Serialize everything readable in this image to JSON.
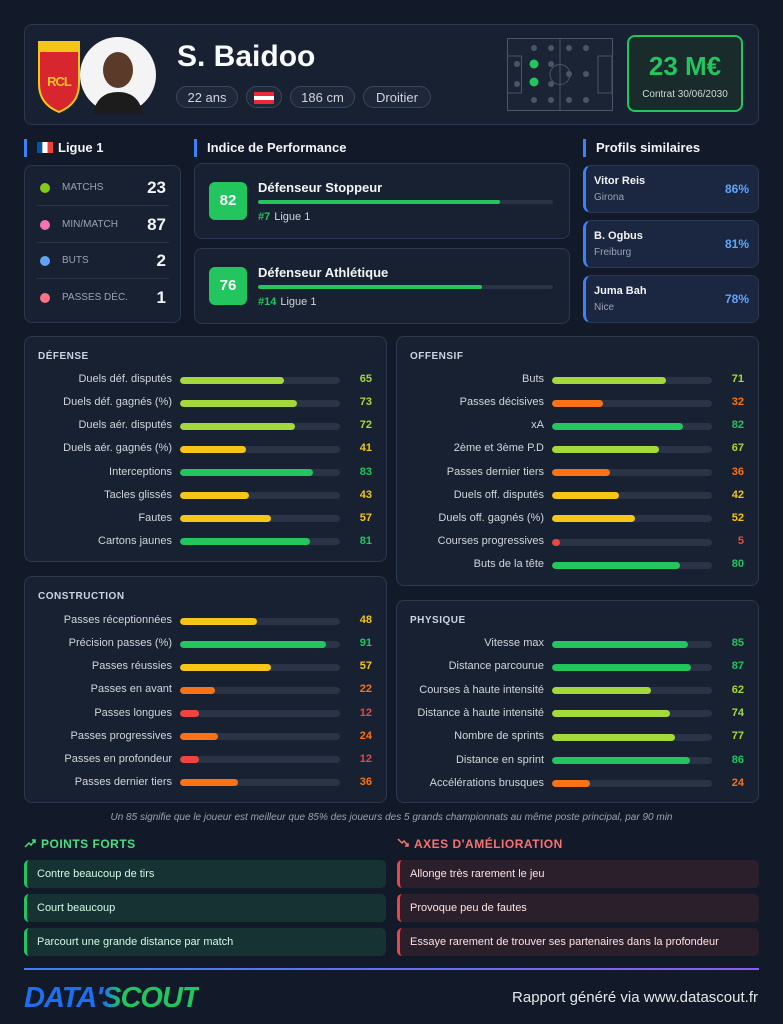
{
  "header": {
    "logo_text": "RCL",
    "name": "S. Baidoo",
    "pills": [
      "22 ans",
      "186 cm",
      "Droitier"
    ],
    "market_value": "23 M€",
    "contract": "Contrat 30/06/2030"
  },
  "league": {
    "title": "Ligue 1",
    "stats": [
      {
        "label": "MATCHS",
        "value": 23
      },
      {
        "label": "MIN/MATCH",
        "value": 87
      },
      {
        "label": "BUTS",
        "value": 2
      },
      {
        "label": "PASSES DÉC.",
        "value": 1
      }
    ]
  },
  "performance": {
    "title": "Indice de Performance",
    "color": "#22c55e",
    "items": [
      {
        "score": 82,
        "role": "Défenseur Stoppeur",
        "rank": "#7",
        "league": "Ligue 1"
      },
      {
        "score": 76,
        "role": "Défenseur Athlétique",
        "rank": "#14",
        "league": "Ligue 1"
      }
    ]
  },
  "similar": {
    "title": "Profils similaires",
    "players": [
      {
        "name": "Vitor Reis",
        "club": "Girona",
        "similarity": "86%"
      },
      {
        "name": "B. Ogbus",
        "club": "Freiburg",
        "similarity": "81%"
      },
      {
        "name": "Juma Bah",
        "club": "Nice",
        "similarity": "78%"
      }
    ]
  },
  "sections": [
    {
      "title": "DÉFENSE",
      "items": [
        {
          "label": "Duels déf. disputés",
          "value": 65,
          "color": "#a3d93a"
        },
        {
          "label": "Duels déf. gagnés (%)",
          "value": 73,
          "color": "#a3d93a"
        },
        {
          "label": "Duels aér. disputés",
          "value": 72,
          "color": "#a3d93a"
        },
        {
          "label": "Duels aér. gagnés (%)",
          "value": 41,
          "color": "#f5c518"
        },
        {
          "label": "Interceptions",
          "value": 83,
          "color": "#22c55e"
        },
        {
          "label": "Tacles glissés",
          "value": 43,
          "color": "#f5c518"
        },
        {
          "label": "Fautes",
          "value": 57,
          "color": "#f5c518"
        },
        {
          "label": "Cartons jaunes",
          "value": 81,
          "color": "#22c55e"
        }
      ]
    },
    {
      "title": "OFFENSIF",
      "items": [
        {
          "label": "Buts",
          "value": 71,
          "color": "#a3d93a"
        },
        {
          "label": "Passes décisives",
          "value": 32,
          "color": "#f97316"
        },
        {
          "label": "xA",
          "value": 82,
          "color": "#22c55e"
        },
        {
          "label": "2ème et 3ème P.D",
          "value": 67,
          "color": "#a3d93a"
        },
        {
          "label": "Passes dernier tiers",
          "value": 36,
          "color": "#f97316"
        },
        {
          "label": "Duels off. disputés",
          "value": 42,
          "color": "#f5c518"
        },
        {
          "label": "Duels off. gagnés (%)",
          "value": 52,
          "color": "#f5c518"
        },
        {
          "label": "Courses progressives",
          "value": 5,
          "color": "#ef4444"
        },
        {
          "label": "Buts de la tête",
          "value": 80,
          "color": "#22c55e"
        }
      ]
    },
    {
      "title": "CONSTRUCTION",
      "items": [
        {
          "label": "Passes réceptionnées",
          "value": 48,
          "color": "#f5c518"
        },
        {
          "label": "Précision passes (%)",
          "value": 91,
          "color": "#22c55e"
        },
        {
          "label": "Passes réussies",
          "value": 57,
          "color": "#f5c518"
        },
        {
          "label": "Passes en avant",
          "value": 22,
          "color": "#f97316"
        },
        {
          "label": "Passes longues",
          "value": 12,
          "color": "#ef4444"
        },
        {
          "label": "Passes progressives",
          "value": 24,
          "color": "#f97316"
        },
        {
          "label": "Passes en profondeur",
          "value": 12,
          "color": "#ef4444"
        },
        {
          "label": "Passes dernier tiers",
          "value": 36,
          "color": "#f97316"
        }
      ]
    },
    {
      "title": "PHYSIQUE",
      "items": [
        {
          "label": "Vitesse max",
          "value": 85,
          "color": "#22c55e"
        },
        {
          "label": "Distance parcourue",
          "value": 87,
          "color": "#22c55e"
        },
        {
          "label": "Courses à haute intensité",
          "value": 62,
          "color": "#a3d93a"
        },
        {
          "label": "Distance à haute intensité",
          "value": 74,
          "color": "#a3d93a"
        },
        {
          "label": "Nombre de sprints",
          "value": 77,
          "color": "#a3d93a"
        },
        {
          "label": "Distance en sprint",
          "value": 86,
          "color": "#22c55e"
        },
        {
          "label": "Accélérations brusques",
          "value": 24,
          "color": "#f97316"
        }
      ]
    }
  ],
  "footnote": "Un 85 signifie que le joueur est meilleur que 85% des joueurs des 5 grands championnats au même poste principal, par 90 min",
  "strengths": {
    "title": "POINTS FORTS",
    "items": [
      "Contre beaucoup de tirs",
      "Court beaucoup",
      "Parcourt une grande distance par match"
    ]
  },
  "weaknesses": {
    "title": "AXES D'AMÉLIORATION",
    "items": [
      "Allonge très rarement le jeu",
      "Provoque peu de fautes",
      "Essaye rarement de trouver ses partenaires dans la profondeur"
    ]
  },
  "footer": {
    "brand": "DATA'SCOUT",
    "credit": "Rapport généré via www.datascout.fr"
  }
}
